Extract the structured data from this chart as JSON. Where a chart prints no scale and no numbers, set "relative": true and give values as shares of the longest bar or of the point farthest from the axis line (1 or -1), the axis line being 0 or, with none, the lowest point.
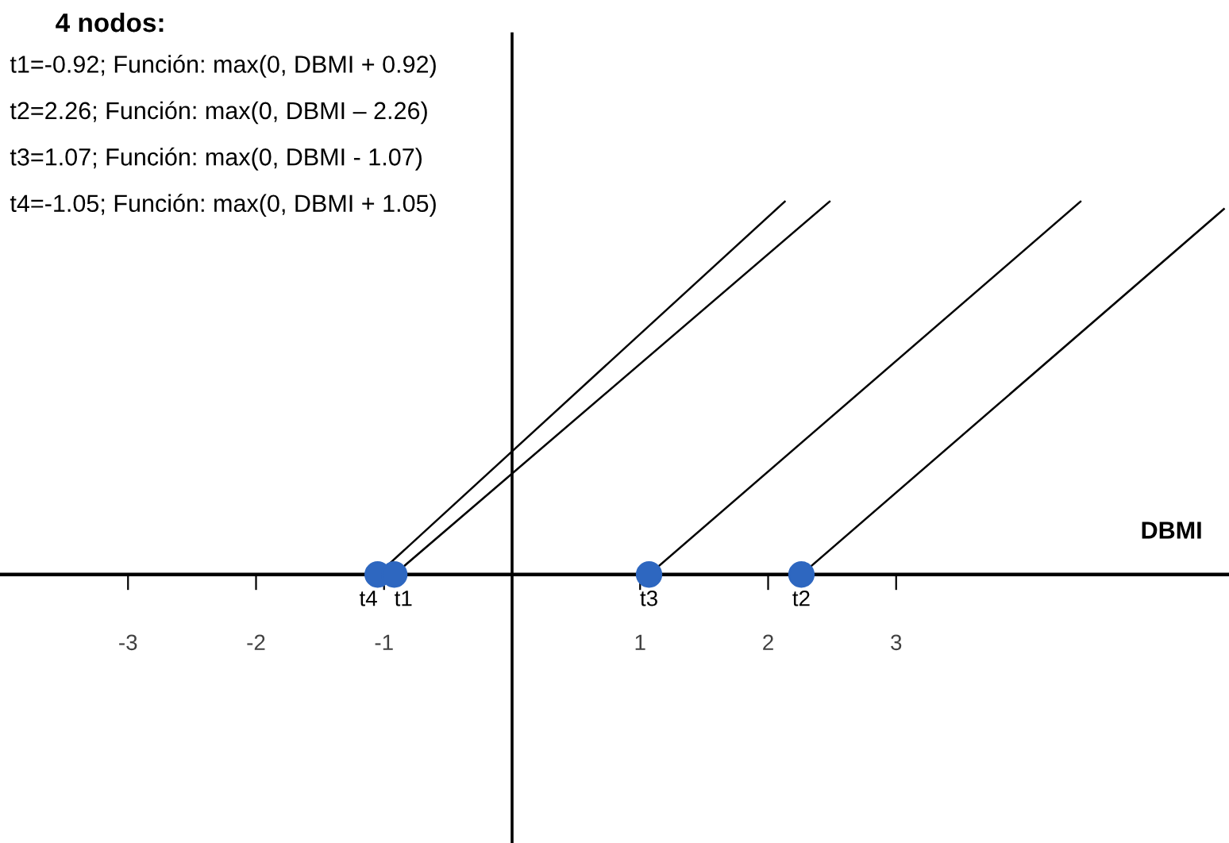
{
  "chart_data": {
    "type": "line",
    "title": "4 nodos:",
    "xlabel": "DBMI",
    "relative": true,
    "annotations": [
      "t1=-0.92; Función: max(0, DBMI + 0.92)",
      "t2=2.26; Función: max(0, DBMI – 2.26)",
      "t3=1.07; Función: max(0, DBMI - 1.07)",
      "t4=-1.05; Función: max(0, DBMI + 1.05)",
      {
        "text": "t1",
        "x": -0.92,
        "y": 0
      },
      {
        "text": "t2",
        "x": 2.26,
        "y": 0
      },
      {
        "text": "t3",
        "x": 1.07,
        "y": 0
      },
      {
        "text": "t4",
        "x": -1.05,
        "y": 0
      }
    ],
    "xlim": [
      -4,
      5.6
    ],
    "xticks": [
      -3,
      -2,
      -1,
      1,
      2,
      3
    ],
    "grid": false,
    "legend": false,
    "series": [
      {
        "type": "line",
        "color": "#000000",
        "x": [
          -0.92,
          2.48
        ],
        "values": [
          0,
          1
        ]
      },
      {
        "type": "line",
        "color": "#000000",
        "x": [
          2.26,
          5.56
        ],
        "values": [
          0,
          0.98
        ]
      },
      {
        "type": "line",
        "color": "#000000",
        "x": [
          1.07,
          4.44
        ],
        "values": [
          0,
          1
        ]
      },
      {
        "type": "line",
        "color": "#000000",
        "x": [
          -1.05,
          2.13
        ],
        "values": [
          0,
          1
        ]
      },
      {
        "type": "scatter",
        "color": "#2e67c0",
        "marker": "circle",
        "x": [
          -1.05,
          -0.92,
          1.07,
          2.26
        ],
        "values": [
          0,
          0,
          0,
          0
        ]
      }
    ]
  }
}
